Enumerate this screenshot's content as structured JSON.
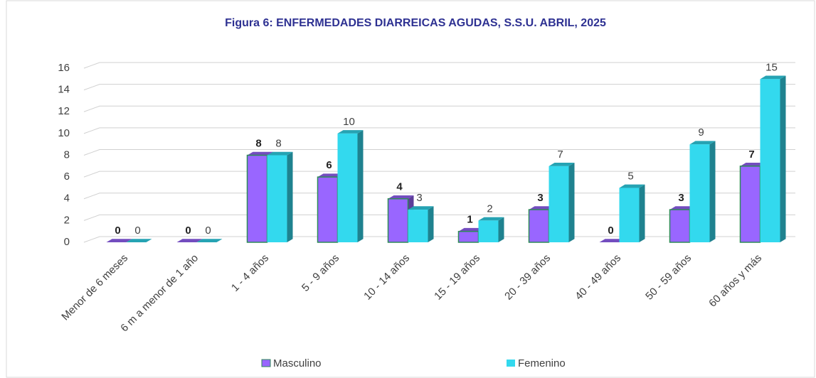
{
  "chart_data": {
    "type": "bar",
    "title": "Figura 6: ENFERMEDADES DIARREICAS AGUDAS, S.S.U. ABRIL, 2025",
    "categories": [
      "Menor de 6 meses",
      "6 m a menor de 1 año",
      "1 - 4 años",
      "5 - 9 años",
      "10 - 14 años",
      "15 - 19 años",
      "20 - 39 años",
      "40 - 49 años",
      "50 - 59 años",
      "60 años y más"
    ],
    "series": [
      {
        "name": "Masculino",
        "color": "#9966ff",
        "values": [
          0,
          0,
          8,
          6,
          4,
          1,
          3,
          0,
          3,
          7
        ]
      },
      {
        "name": "Femenino",
        "color": "#33d9ee",
        "values": [
          0,
          0,
          8,
          10,
          3,
          2,
          7,
          5,
          9,
          15
        ]
      }
    ],
    "ylim": [
      0,
      16
    ],
    "yticks": [
      0,
      2,
      4,
      6,
      8,
      10,
      12,
      14,
      16
    ],
    "grid": true,
    "legend": "bottom"
  }
}
